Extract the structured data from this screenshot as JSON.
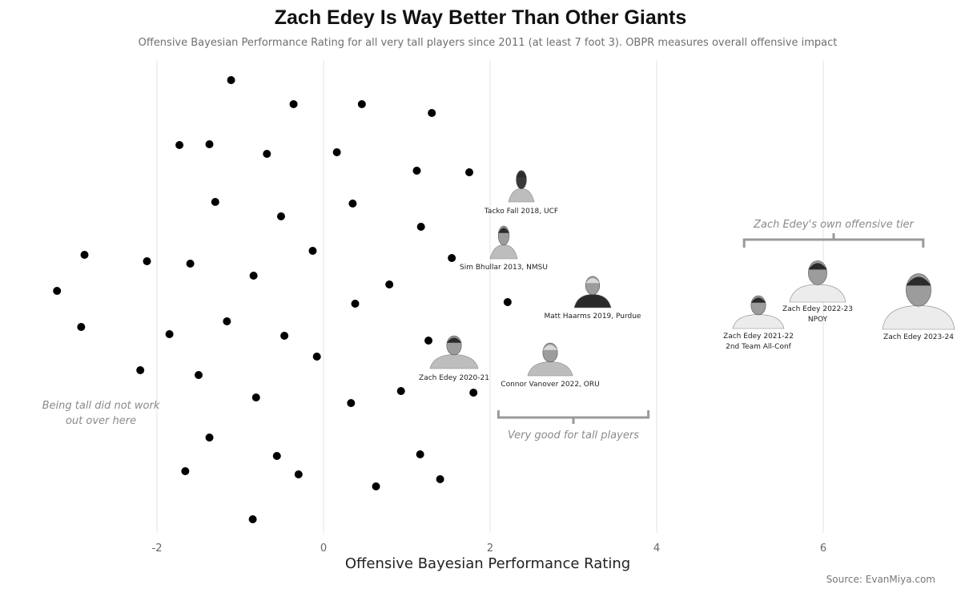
{
  "chart_data": {
    "type": "scatter",
    "title": "Zach Edey Is Way Better Than Other Giants",
    "subtitle": "Offensive Bayesian Performance Rating for all very tall players since 2011 (at least 7 foot 3). OBPR measures overall offensive impact",
    "xlabel": "Offensive Bayesian Performance Rating",
    "xlim": [
      -3.3,
      7.5
    ],
    "x_ticks": [
      -2,
      0,
      2,
      4,
      6
    ],
    "x_tick_labels": [
      "-2",
      "0",
      "2",
      "4",
      "6"
    ],
    "grid": "vertical",
    "source": "Source: EvanMiya.com",
    "points": [
      {
        "x": -1.11
      },
      {
        "x": -0.36
      },
      {
        "x": 0.46
      },
      {
        "x": 1.3
      },
      {
        "x": -1.73
      },
      {
        "x": -1.37
      },
      {
        "x": -0.68
      },
      {
        "x": 0.16
      },
      {
        "x": 1.12
      },
      {
        "x": 1.75
      },
      {
        "x": -1.3
      },
      {
        "x": -0.51
      },
      {
        "x": 0.35
      },
      {
        "x": 1.17
      },
      {
        "x": -2.87
      },
      {
        "x": -2.12
      },
      {
        "x": -1.6
      },
      {
        "x": -0.13
      },
      {
        "x": 1.54
      },
      {
        "x": -0.84
      },
      {
        "x": 0.79
      },
      {
        "x": -3.2
      },
      {
        "x": 0.38
      },
      {
        "x": 2.21
      },
      {
        "x": -2.91
      },
      {
        "x": -1.16
      },
      {
        "x": -1.85
      },
      {
        "x": -0.47
      },
      {
        "x": 1.26
      },
      {
        "x": -0.08
      },
      {
        "x": -2.2
      },
      {
        "x": -1.5
      },
      {
        "x": 0.93
      },
      {
        "x": 1.8
      },
      {
        "x": -0.81
      },
      {
        "x": 0.33
      },
      {
        "x": -1.37
      },
      {
        "x": 1.16
      },
      {
        "x": -0.56
      },
      {
        "x": -1.66
      },
      {
        "x": -0.3
      },
      {
        "x": 1.4
      },
      {
        "x": 0.63
      },
      {
        "x": -0.85
      }
    ],
    "labeled_players": [
      {
        "label": "Tacko Fall 2018, UCF",
        "x": 2.4
      },
      {
        "label": "Sim Bhullar 2013, NMSU",
        "x": 2.15
      },
      {
        "label": "Matt Haarms 2019, Purdue",
        "x": 3.2
      },
      {
        "label": "Zach Edey 2020-21",
        "x": 1.7
      },
      {
        "label": "Connor Vanover 2022, ORU",
        "x": 2.8
      },
      {
        "label": "Zach Edey 2021-22",
        "label2": "2nd Team All-Conf",
        "x": 5.45
      },
      {
        "label": "Zach Edey 2022-23",
        "label2": "NPOY",
        "x": 5.95
      },
      {
        "label": "Zach Edey 2023-24",
        "x": 6.75
      }
    ],
    "annotations": [
      {
        "text_lines": [
          "Being tall did not work",
          "out over here"
        ]
      },
      {
        "text": "Very good for tall players",
        "x_range": [
          2.1,
          3.9
        ]
      },
      {
        "text": "Zach Edey's own offensive tier",
        "x_range": [
          5.05,
          7.2
        ]
      }
    ],
    "colors": {
      "point": "#000000",
      "grid": "#e3e3e3",
      "bracket": "#9a9a9a",
      "annotation": "#8a8a8a"
    }
  }
}
